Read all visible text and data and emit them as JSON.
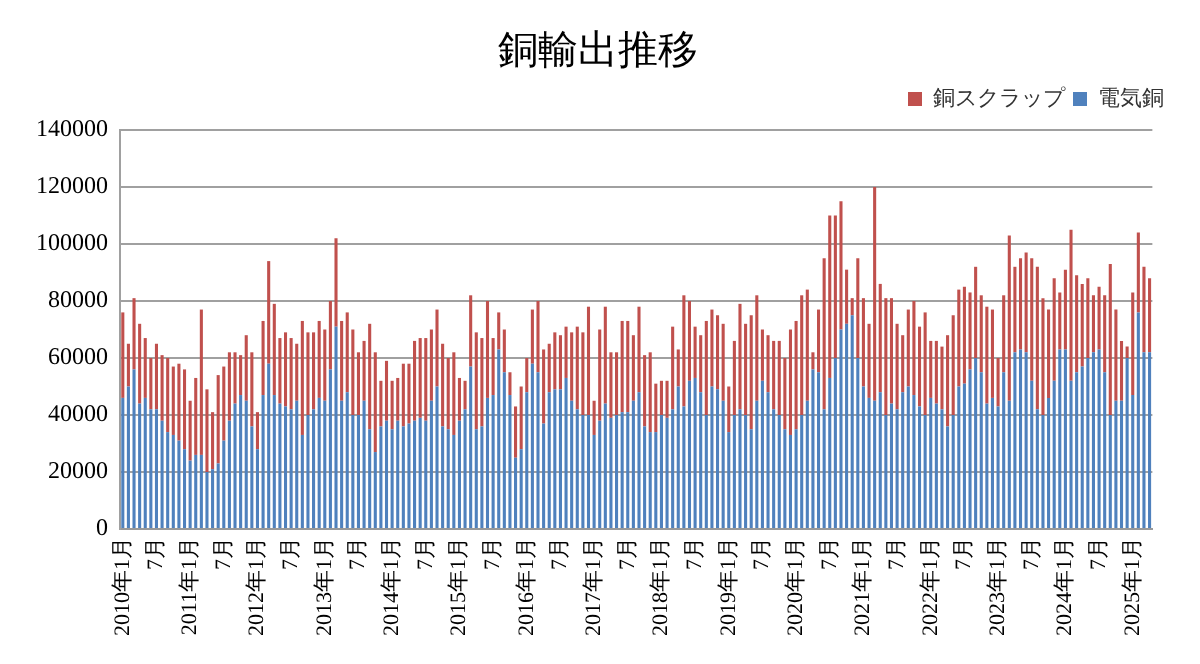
{
  "chart_data": {
    "type": "bar",
    "title": "銅輸出推移",
    "stacked": true,
    "legend": "top right",
    "grid": "y",
    "categories": [
      "2010年1月",
      null,
      null,
      null,
      null,
      null,
      "7月",
      null,
      null,
      null,
      null,
      null,
      "2011年1月",
      null,
      null,
      null,
      null,
      null,
      "7月",
      null,
      null,
      null,
      null,
      null,
      "2012年1月",
      null,
      null,
      null,
      null,
      null,
      "7月",
      null,
      null,
      null,
      null,
      null,
      "2013年1月",
      null,
      null,
      null,
      null,
      null,
      "7月",
      null,
      null,
      null,
      null,
      null,
      "2014年1月",
      null,
      null,
      null,
      null,
      null,
      "7月",
      null,
      null,
      null,
      null,
      null,
      "2015年1月",
      null,
      null,
      null,
      null,
      null,
      "7月",
      null,
      null,
      null,
      null,
      null,
      "2016年1月",
      null,
      null,
      null,
      null,
      null,
      "7月",
      null,
      null,
      null,
      null,
      null,
      "2017年1月",
      null,
      null,
      null,
      null,
      null,
      "7月",
      null,
      null,
      null,
      null,
      null,
      "2018年1月",
      null,
      null,
      null,
      null,
      null,
      "7月",
      null,
      null,
      null,
      null,
      null,
      "2019年1月",
      null,
      null,
      null,
      null,
      null,
      "7月",
      null,
      null,
      null,
      null,
      null,
      "2020年1月",
      null,
      null,
      null,
      null,
      null,
      "7月",
      null,
      null,
      null,
      null,
      null,
      "2021年1月",
      null,
      null,
      null,
      null,
      null,
      "7月",
      null,
      null,
      null,
      null,
      null,
      "2022年1月",
      null,
      null,
      null,
      null,
      null,
      "7月",
      null,
      null,
      null,
      null,
      null,
      "2023年1月",
      null,
      null,
      null,
      null,
      null,
      "7月",
      null,
      null,
      null,
      null,
      null,
      "2024年1月",
      null,
      null,
      null,
      null,
      null,
      "7月",
      null,
      null,
      null,
      null,
      null,
      "2025年1月",
      null,
      null,
      null
    ],
    "ylim": [
      0,
      140000
    ],
    "yticks": [
      0,
      20000,
      40000,
      60000,
      80000,
      100000,
      120000,
      140000
    ],
    "series": [
      {
        "name": "電気銅",
        "color": "#4f81bd",
        "values": [
          46000,
          50000,
          56000,
          44000,
          46000,
          42000,
          42000,
          38000,
          34000,
          33000,
          31000,
          28000,
          24000,
          26000,
          26000,
          20000,
          21000,
          23000,
          31000,
          38000,
          44000,
          47000,
          45000,
          36000,
          28000,
          47000,
          58000,
          47000,
          44000,
          43000,
          42000,
          45000,
          33000,
          40000,
          42000,
          46000,
          45000,
          56000,
          71000,
          45000,
          48000,
          40000,
          40000,
          45000,
          35000,
          27000,
          36000,
          38000,
          35000,
          38000,
          36000,
          37000,
          38000,
          39000,
          38000,
          45000,
          50000,
          36000,
          35000,
          33000,
          38000,
          42000,
          57000,
          35000,
          36000,
          46000,
          47000,
          63000,
          55000,
          47000,
          25000,
          28000,
          48000,
          58000,
          55000,
          37000,
          48000,
          49000,
          49000,
          53000,
          45000,
          42000,
          40000,
          40000,
          33000,
          38000,
          44000,
          39000,
          40000,
          41000,
          41000,
          45000,
          48000,
          36000,
          34000,
          34000,
          40000,
          39000,
          42000,
          50000,
          43000,
          52000,
          53000,
          48000,
          40000,
          50000,
          49000,
          45000,
          34000,
          40000,
          42000,
          40000,
          35000,
          45000,
          52000,
          48000,
          42000,
          40000,
          35000,
          33000,
          35000,
          40000,
          45000,
          56000,
          55000,
          42000,
          53000,
          60000,
          70000,
          72000,
          75000,
          60000,
          50000,
          46000,
          45000,
          48000,
          40000,
          44000,
          42000,
          48000,
          50000,
          47000,
          43000,
          40000,
          46000,
          44000,
          42000,
          36000,
          40000,
          50000,
          51000,
          56000,
          60000,
          55000,
          44000,
          46000,
          43000,
          55000,
          45000,
          62000,
          63000,
          62000,
          52000,
          42000,
          40000,
          46000,
          52000,
          63000,
          63000,
          52000,
          55000,
          57000,
          60000,
          62000,
          63000,
          55000,
          40000,
          45000,
          45000,
          60000,
          47000,
          76000,
          62000,
          62000
        ]
      },
      {
        "name": "銅スクラップ",
        "color": "#c0504d",
        "values": [
          30000,
          15000,
          25000,
          28000,
          21000,
          18000,
          23000,
          23000,
          26000,
          24000,
          27000,
          28000,
          21000,
          27000,
          51000,
          29000,
          20000,
          31000,
          26000,
          24000,
          18000,
          14000,
          23000,
          26000,
          13000,
          26000,
          36000,
          32000,
          23000,
          26000,
          25000,
          20000,
          40000,
          29000,
          27000,
          27000,
          25000,
          24000,
          31000,
          28000,
          28000,
          30000,
          22000,
          21000,
          37000,
          35000,
          16000,
          21000,
          17000,
          15000,
          22000,
          21000,
          28000,
          28000,
          29000,
          25000,
          27000,
          29000,
          25000,
          29000,
          15000,
          10000,
          25000,
          34000,
          31000,
          34000,
          20000,
          13000,
          15000,
          8000,
          18000,
          22000,
          12000,
          19000,
          25000,
          26000,
          17000,
          20000,
          19000,
          18000,
          24000,
          29000,
          29000,
          38000,
          12000,
          32000,
          34000,
          23000,
          22000,
          32000,
          32000,
          23000,
          30000,
          25000,
          28000,
          17000,
          12000,
          13000,
          29000,
          13000,
          39000,
          28000,
          18000,
          20000,
          33000,
          27000,
          26000,
          27000,
          16000,
          26000,
          37000,
          32000,
          40000,
          37000,
          18000,
          20000,
          24000,
          26000,
          25000,
          37000,
          38000,
          42000,
          39000,
          6000,
          22000,
          53000,
          57000,
          50000,
          45000,
          19000,
          6000,
          35000,
          31000,
          26000,
          75000,
          38000,
          41000,
          37000,
          30000,
          20000,
          27000,
          33000,
          28000,
          36000,
          20000,
          22000,
          22000,
          32000,
          35000,
          34000,
          34000,
          27000,
          32000,
          27000,
          34000,
          31000,
          17000,
          27000,
          58000,
          30000,
          32000,
          35000,
          43000,
          50000,
          41000,
          31000,
          36000,
          20000,
          28000,
          53000,
          34000,
          29000,
          28000,
          20000,
          22000,
          27000,
          53000,
          32000,
          21000,
          4000,
          36000,
          28000,
          30000,
          26000
        ]
      }
    ]
  }
}
